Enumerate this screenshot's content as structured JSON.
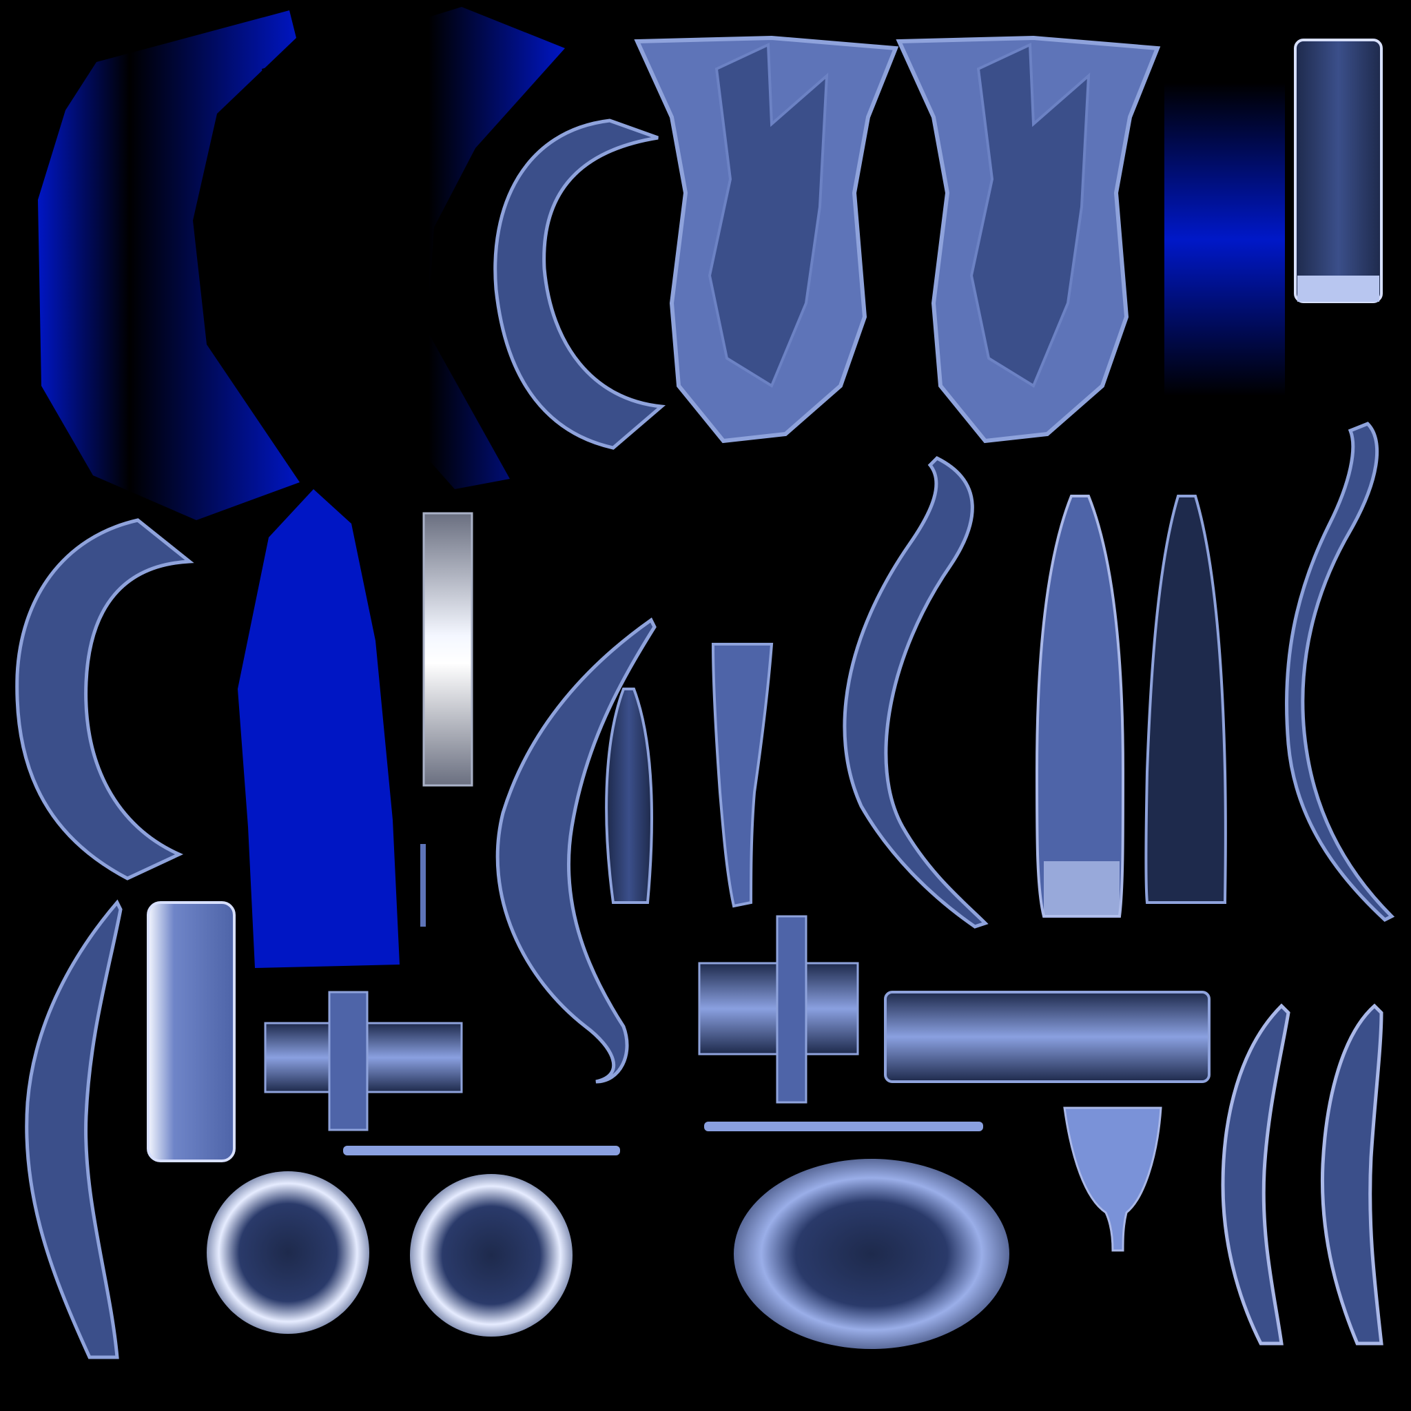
{
  "texture": {
    "background_color": "#000000",
    "palette": {
      "royal_blue": "#0016c4",
      "steel_blue": "#5e74b8",
      "dark_steel": "#1e2a4c",
      "mid_steel": "#3b4f8a",
      "pale_blue": "#b8c6f0",
      "highlight": "#f4f7ff"
    },
    "islands": [
      {
        "name": "cloth-panel-left",
        "fill": "royal_blue"
      },
      {
        "name": "cloth-panel-right",
        "fill": "royal_blue"
      },
      {
        "name": "cloth-panel-lower",
        "fill": "royal_blue"
      },
      {
        "name": "gradient-strip",
        "fill": "royal_blue"
      },
      {
        "name": "shield-plate-left",
        "fill": "steel_blue"
      },
      {
        "name": "shield-plate-right",
        "fill": "steel_blue"
      },
      {
        "name": "crescent-guard-upper",
        "fill": "steel_blue"
      },
      {
        "name": "crescent-guard-lower",
        "fill": "steel_blue"
      },
      {
        "name": "bar-piece",
        "fill": "pale_blue"
      },
      {
        "name": "white-bar-piece",
        "fill": "highlight"
      },
      {
        "name": "curved-blade",
        "fill": "steel_blue"
      },
      {
        "name": "tapered-piece",
        "fill": "steel_blue"
      },
      {
        "name": "cross-piece",
        "fill": "steel_blue"
      },
      {
        "name": "long-bar",
        "fill": "steel_blue"
      },
      {
        "name": "ring-piece",
        "fill": "pale_blue"
      },
      {
        "name": "oval-piece",
        "fill": "pale_blue"
      },
      {
        "name": "cup-piece",
        "fill": "steel_blue"
      },
      {
        "name": "thin-line",
        "fill": "pale_blue"
      }
    ]
  }
}
